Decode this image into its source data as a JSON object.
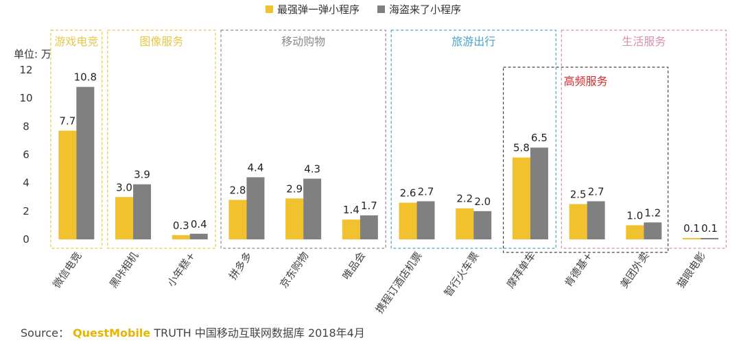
{
  "chart_data": {
    "type": "bar",
    "ylabel": "单位: 万",
    "ylim": [
      0,
      12
    ],
    "yticks": [
      0,
      2,
      4,
      6,
      8,
      10,
      12
    ],
    "categories": [
      "微信电竞",
      "黑咔相机",
      "小年糕+",
      "拼多多",
      "京东购物",
      "唯品会",
      "携程订酒店机票",
      "智行火车票",
      "摩拜单车",
      "肯德基+",
      "美团外卖",
      "猫眼电影"
    ],
    "series": [
      {
        "name": "最强弹一弹小程序",
        "color": "#f2c12e",
        "values": [
          7.7,
          3.0,
          0.3,
          2.8,
          2.9,
          1.4,
          2.6,
          2.2,
          5.8,
          2.5,
          1.0,
          0.1
        ]
      },
      {
        "name": "海盗来了小程序",
        "color": "#808080",
        "values": [
          10.8,
          3.9,
          0.4,
          4.4,
          4.3,
          1.7,
          2.7,
          2.0,
          6.5,
          2.7,
          1.2,
          0.1
        ]
      }
    ],
    "value_labels": [
      [
        "7.7",
        "3.0",
        "0.3",
        "2.8",
        "2.9",
        "1.4",
        "2.6",
        "2.2",
        "5.8",
        "2.5",
        "1.0",
        "0.1"
      ],
      [
        "10.8",
        "3.9",
        "0.4",
        "4.4",
        "4.3",
        "1.7",
        "2.7",
        "2.0",
        "6.5",
        "2.7",
        "1.2",
        "0.1"
      ]
    ],
    "groups": [
      {
        "label": "游戏电竞",
        "color": "#e6c84a",
        "start": 0,
        "end": 0
      },
      {
        "label": "图像服务",
        "color": "#e6c84a",
        "start": 1,
        "end": 2
      },
      {
        "label": "移动购物",
        "color": "#8a8a8a",
        "start": 3,
        "end": 5
      },
      {
        "label": "旅游出行",
        "color": "#4aa3c8",
        "start": 6,
        "end": 8
      },
      {
        "label": "生活服务",
        "color": "#d98fb0",
        "start": 9,
        "end": 11
      }
    ],
    "highlight": {
      "label": "高频服务",
      "color": "#d42b2b",
      "start": 8,
      "end": 10
    },
    "legend": [
      "最强弹一弹小程序",
      "海盗来了小程序"
    ],
    "legend_position": "top-center",
    "grid": false
  },
  "source": {
    "prefix": "Source：",
    "brand": "QuestMobile",
    "rest": "TRUTH 中国移动互联网数据库 2018年4月"
  }
}
